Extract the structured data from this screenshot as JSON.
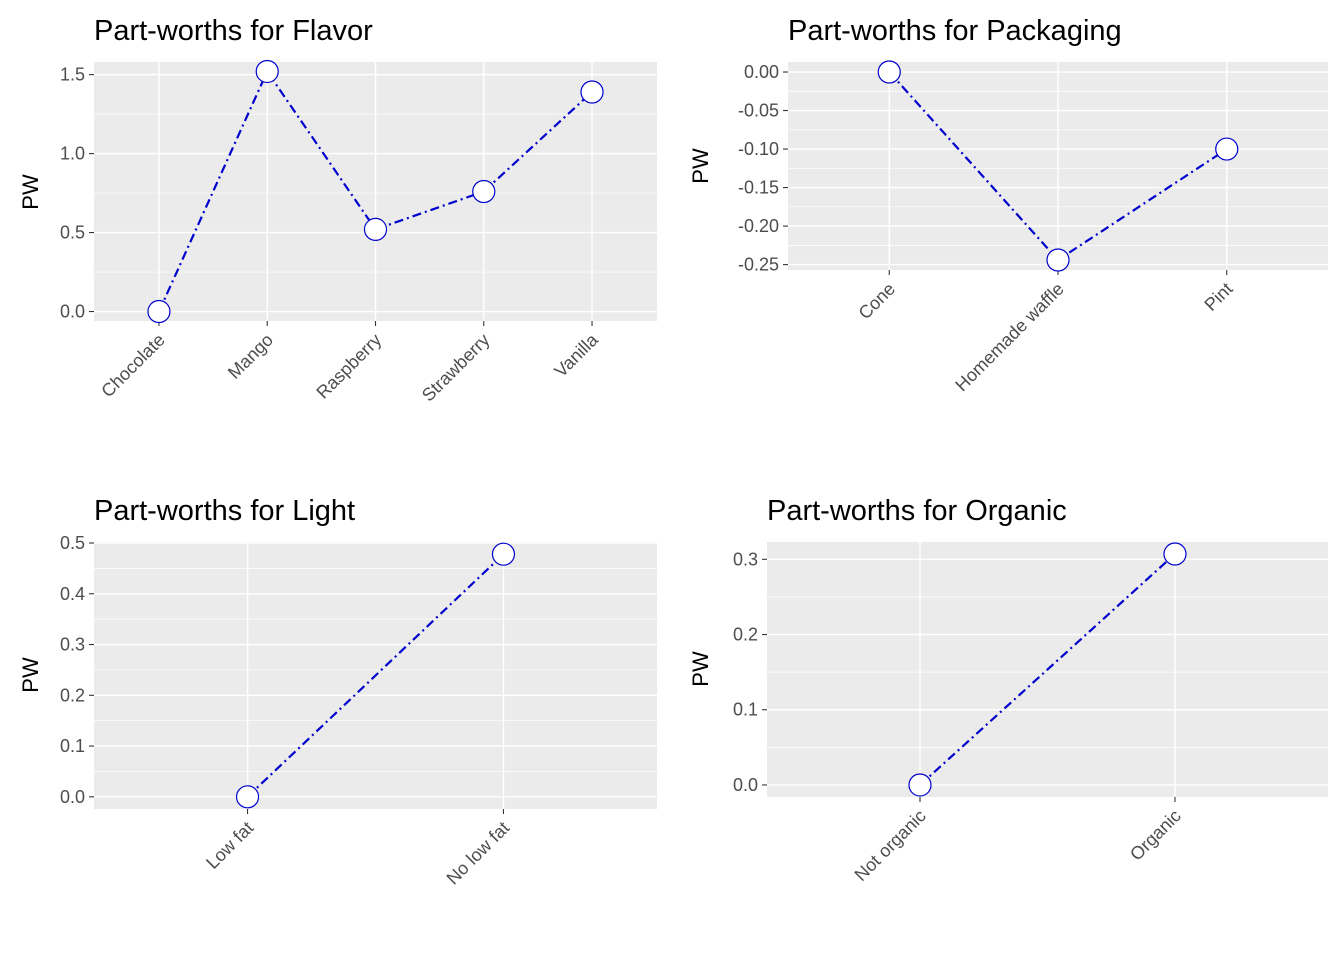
{
  "chart_data": [
    {
      "type": "line",
      "title": "Part-worths for Flavor",
      "xlabel": "",
      "ylabel": "PW",
      "categories": [
        "Chocolate",
        "Mango",
        "Raspberry",
        "Strawberry",
        "Vanilla"
      ],
      "values": [
        0.0,
        1.52,
        0.52,
        0.76,
        1.39
      ],
      "ylim": [
        -0.06,
        1.58
      ],
      "yticks": [
        0.0,
        0.5,
        1.0,
        1.5
      ],
      "ytick_labels": [
        "0.0",
        "0.5",
        "1.0",
        "1.5"
      ],
      "grid": true,
      "line_color": "#0000cd",
      "point_stroke": "#0000cd",
      "point_fill": "#ffffff"
    },
    {
      "type": "line",
      "title": "Part-worths for Packaging",
      "xlabel": "",
      "ylabel": "PW",
      "categories": [
        "Cone",
        "Homemade waffle",
        "Pint"
      ],
      "values": [
        0.0,
        -0.244,
        -0.1
      ],
      "ylim": [
        -0.257,
        0.013
      ],
      "yticks": [
        0.0,
        -0.05,
        -0.1,
        -0.15,
        -0.2,
        -0.25
      ],
      "ytick_labels": [
        "0.00",
        "-0.05",
        "-0.10",
        "-0.15",
        "-0.20",
        "-0.25"
      ],
      "grid": true,
      "line_color": "#0000cd",
      "point_stroke": "#0000cd",
      "point_fill": "#ffffff"
    },
    {
      "type": "line",
      "title": "Part-worths for Light",
      "xlabel": "",
      "ylabel": "PW",
      "categories": [
        "Low fat",
        "No low fat"
      ],
      "values": [
        0.0,
        0.478
      ],
      "ylim": [
        -0.024,
        0.502
      ],
      "yticks": [
        0.0,
        0.1,
        0.2,
        0.3,
        0.4,
        0.5
      ],
      "ytick_labels": [
        "0.0",
        "0.1",
        "0.2",
        "0.3",
        "0.4",
        "0.5"
      ],
      "grid": true,
      "line_color": "#0000cd",
      "point_stroke": "#0000cd",
      "point_fill": "#ffffff"
    },
    {
      "type": "line",
      "title": "Part-worths for Organic",
      "xlabel": "",
      "ylabel": "PW",
      "categories": [
        "Not organic",
        "Organic"
      ],
      "values": [
        0.0,
        0.307
      ],
      "ylim": [
        -0.016,
        0.323
      ],
      "yticks": [
        0.0,
        0.1,
        0.2,
        0.3
      ],
      "ytick_labels": [
        "0.0",
        "0.1",
        "0.2",
        "0.3"
      ],
      "grid": true,
      "line_color": "#0000cd",
      "point_stroke": "#0000cd",
      "point_fill": "#ffffff"
    }
  ]
}
